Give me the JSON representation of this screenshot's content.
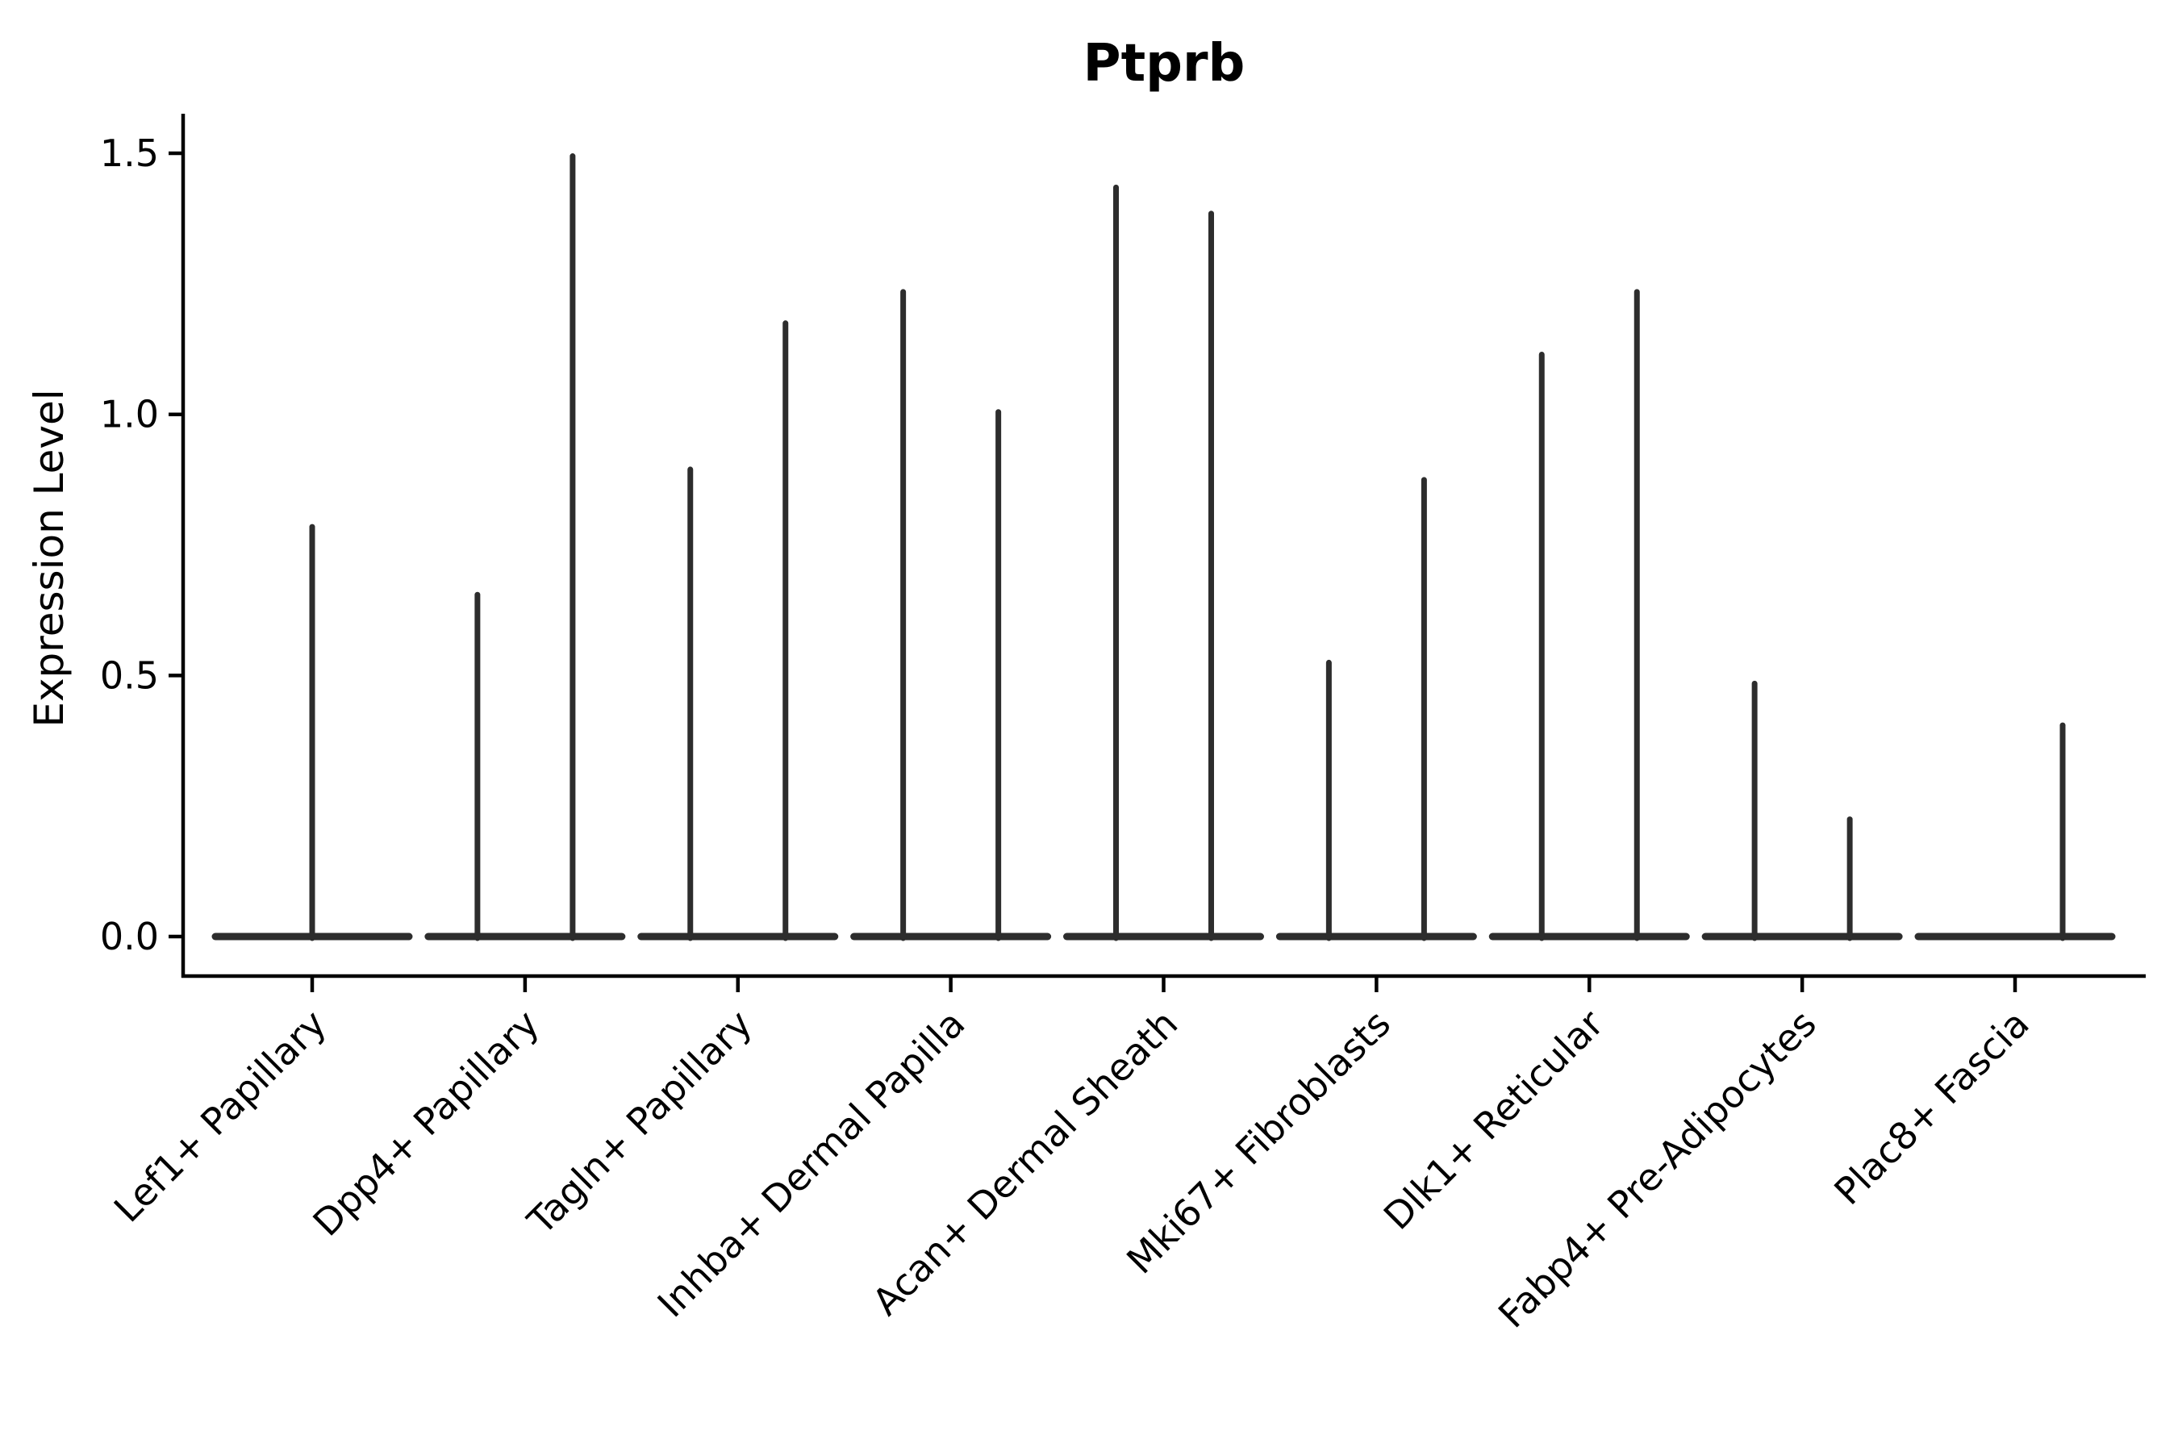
{
  "chart_data": {
    "type": "violin",
    "title": "Ptprb",
    "ylabel": "Expression Level",
    "xlabel": "",
    "grid": false,
    "legend_position": "none",
    "background_color": "#ffffff",
    "axis_color": "#000000",
    "violin_color": "#2d2d2d",
    "ylim": [
      0.0,
      1.58
    ],
    "yticks": [
      {
        "value": 0.0,
        "label": "0.0"
      },
      {
        "value": 0.5,
        "label": "0.5"
      },
      {
        "value": 1.0,
        "label": "1.0"
      },
      {
        "value": 1.5,
        "label": "1.5"
      }
    ],
    "baseline_value": 0.0,
    "categories": [
      "Lef1+ Papillary",
      "Dpp4+ Papillary",
      "Tagln+ Papillary",
      "Inhba+ Dermal Papilla",
      "Acan+ Dermal Sheath",
      "Mki67+ Fibroblasts",
      "Dlk1+ Reticular",
      "Fabp4+ Pre-Adipocytes",
      "Plac8+ Fascia"
    ],
    "groups": [
      {
        "label": "Lef1+ Papillary",
        "violins": [
          {
            "position": "center",
            "peak": 0.79
          }
        ]
      },
      {
        "label": "Dpp4+ Papillary",
        "violins": [
          {
            "position": "left",
            "peak": 0.66
          },
          {
            "position": "right",
            "peak": 1.5
          }
        ]
      },
      {
        "label": "Tagln+ Papillary",
        "violins": [
          {
            "position": "left",
            "peak": 0.9
          },
          {
            "position": "right",
            "peak": 1.18
          }
        ]
      },
      {
        "label": "Inhba+ Dermal Papilla",
        "violins": [
          {
            "position": "left",
            "peak": 1.24
          },
          {
            "position": "right",
            "peak": 1.01
          }
        ]
      },
      {
        "label": "Acan+ Dermal Sheath",
        "violins": [
          {
            "position": "left",
            "peak": 1.44
          },
          {
            "position": "right",
            "peak": 1.39
          }
        ]
      },
      {
        "label": "Mki67+ Fibroblasts",
        "violins": [
          {
            "position": "left",
            "peak": 0.53
          },
          {
            "position": "right",
            "peak": 0.88
          }
        ]
      },
      {
        "label": "Dlk1+ Reticular",
        "violins": [
          {
            "position": "left",
            "peak": 1.12
          },
          {
            "position": "right",
            "peak": 1.24
          }
        ]
      },
      {
        "label": "Fabp4+ Pre-Adipocytes",
        "violins": [
          {
            "position": "left",
            "peak": 0.49
          },
          {
            "position": "right",
            "peak": 0.23
          }
        ]
      },
      {
        "label": "Plac8+ Fascia",
        "violins": [
          {
            "position": "right",
            "peak": 0.41
          }
        ]
      }
    ]
  }
}
